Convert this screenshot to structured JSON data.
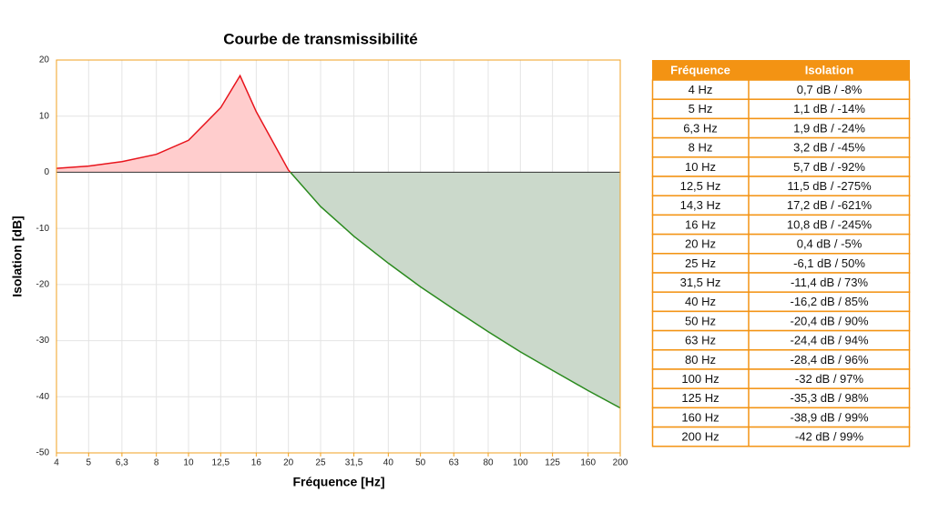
{
  "chart_data": {
    "type": "area-line",
    "title": "Courbe de transmissibilité",
    "x_label": "Fréquence [Hz]",
    "y_label": "Isolation [dB]",
    "x": [
      4,
      5,
      6.3,
      8,
      10,
      12.5,
      14.3,
      16,
      20,
      25,
      31.5,
      40,
      50,
      63,
      80,
      100,
      125,
      160,
      200
    ],
    "values": [
      0.7,
      1.1,
      1.9,
      3.2,
      5.7,
      11.5,
      17.2,
      10.8,
      0.4,
      -6.1,
      -11.4,
      -16.2,
      -20.4,
      -24.4,
      -28.4,
      -32,
      -35.3,
      -38.9,
      -42
    ],
    "xlim": [
      4,
      200
    ],
    "xscale": "log",
    "xticks": [
      4,
      5,
      {
        "value": 6.3,
        "label": "6,3"
      },
      8,
      10,
      {
        "value": 12.5,
        "label": "12,5"
      },
      16,
      20,
      25,
      {
        "value": 31.5,
        "label": "31,5"
      },
      40,
      50,
      63,
      80,
      100,
      125,
      160,
      200
    ],
    "ylim": [
      -50,
      20
    ],
    "yticks": [
      -50,
      -40,
      -30,
      -20,
      -10,
      0,
      10,
      20
    ],
    "grid": true,
    "color_above": "#e8141c",
    "fill_above": "#ffcdcd",
    "color_below": "#2a8a1e",
    "fill_below": "#cbd9cb"
  },
  "table": {
    "headers": [
      "Fréquence",
      "Isolation"
    ],
    "rows": [
      [
        "4 Hz",
        "0,7 dB / -8%"
      ],
      [
        "5 Hz",
        "1,1 dB / -14%"
      ],
      [
        "6,3 Hz",
        "1,9 dB / -24%"
      ],
      [
        "8 Hz",
        "3,2 dB / -45%"
      ],
      [
        "10 Hz",
        "5,7 dB / -92%"
      ],
      [
        "12,5 Hz",
        "11,5 dB / -275%"
      ],
      [
        "14,3 Hz",
        "17,2 dB / -621%"
      ],
      [
        "16 Hz",
        "10,8 dB / -245%"
      ],
      [
        "20 Hz",
        "0,4 dB / -5%"
      ],
      [
        "25 Hz",
        "-6,1 dB / 50%"
      ],
      [
        "31,5 Hz",
        "-11,4 dB / 73%"
      ],
      [
        "40 Hz",
        "-16,2 dB / 85%"
      ],
      [
        "50 Hz",
        "-20,4 dB / 90%"
      ],
      [
        "63 Hz",
        "-24,4 dB / 94%"
      ],
      [
        "80 Hz",
        "-28,4 dB / 96%"
      ],
      [
        "100 Hz",
        "-32 dB / 97%"
      ],
      [
        "125 Hz",
        "-35,3 dB / 98%"
      ],
      [
        "160 Hz",
        "-38,9 dB / 99%"
      ],
      [
        "200 Hz",
        "-42 dB / 99%"
      ]
    ]
  }
}
